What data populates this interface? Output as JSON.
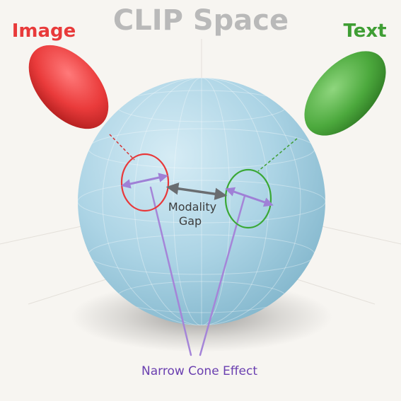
{
  "title": "CLIP Space",
  "labels": {
    "image": "Image",
    "text": "Text",
    "gap_line1": "Modality",
    "gap_line2": "Gap",
    "cone_effect": "Narrow Cone Effect"
  },
  "colors": {
    "background": "#f7f5f1",
    "title": "#b9b9b9",
    "image": "#e83a3a",
    "text": "#3f9e34",
    "gap_arrow": "#6a6d70",
    "gap_label": "#3c3c3c",
    "cone": "#a585d8",
    "cone_label": "#6a3fb0",
    "sphere": "#a9d2e3"
  }
}
